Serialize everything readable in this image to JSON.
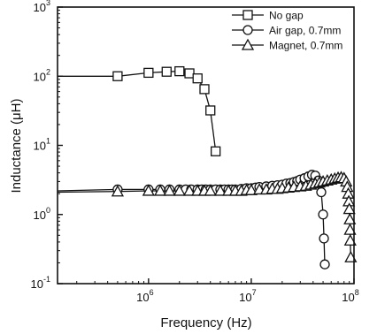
{
  "chart_data": {
    "type": "line",
    "title": "",
    "xlabel": "Frequency (Hz)",
    "ylabel": "Inductance (μH)",
    "x_scale": "log",
    "y_scale": "log",
    "xlim": [
      130000,
      100000000
    ],
    "ylim": [
      0.1,
      1000
    ],
    "x_ticks": [
      {
        "value": 1000000,
        "base": "10",
        "exp": "6"
      },
      {
        "value": 10000000,
        "base": "10",
        "exp": "7"
      },
      {
        "value": 100000000,
        "base": "10",
        "exp": "8"
      }
    ],
    "y_ticks": [
      {
        "value": 0.1,
        "base": "10",
        "exp": "-1"
      },
      {
        "value": 1,
        "base": "10",
        "exp": "0"
      },
      {
        "value": 10,
        "base": "10",
        "exp": "1"
      },
      {
        "value": 100,
        "base": "10",
        "exp": "2"
      },
      {
        "value": 1000,
        "base": "10",
        "exp": "3"
      }
    ],
    "grid": false,
    "legend_position": "top-right",
    "series": [
      {
        "name": "No gap",
        "marker": "square",
        "points": [
          [
            130000,
            100
          ],
          [
            500000,
            100
          ],
          [
            1000000,
            112
          ],
          [
            1500000,
            116
          ],
          [
            2000000,
            118
          ],
          [
            2500000,
            110
          ],
          [
            3000000,
            93
          ],
          [
            3500000,
            65
          ],
          [
            4000000,
            32
          ],
          [
            4500000,
            8.2
          ]
        ]
      },
      {
        "name": "Air gap, 0.7mm",
        "marker": "circle",
        "points": [
          [
            130000,
            2.2
          ],
          [
            500000,
            2.3
          ],
          [
            1000000,
            2.3
          ],
          [
            1300000,
            2.3
          ],
          [
            1600000,
            2.3
          ],
          [
            2000000,
            2.3
          ],
          [
            2300000,
            2.3
          ],
          [
            2600000,
            2.3
          ],
          [
            3000000,
            2.3
          ],
          [
            3300000,
            2.3
          ],
          [
            3600000,
            2.3
          ],
          [
            4000000,
            2.3
          ],
          [
            4500000,
            2.3
          ],
          [
            5000000,
            2.3
          ],
          [
            5500000,
            2.3
          ],
          [
            6000000,
            2.3
          ],
          [
            6500000,
            2.3
          ],
          [
            7000000,
            2.3
          ],
          [
            8000000,
            2.35
          ],
          [
            9000000,
            2.4
          ],
          [
            10000000,
            2.4
          ],
          [
            11000000,
            2.45
          ],
          [
            12000000,
            2.5
          ],
          [
            14000000,
            2.55
          ],
          [
            16000000,
            2.6
          ],
          [
            18000000,
            2.65
          ],
          [
            20000000,
            2.7
          ],
          [
            22000000,
            2.8
          ],
          [
            24000000,
            2.85
          ],
          [
            26000000,
            2.95
          ],
          [
            28000000,
            3.05
          ],
          [
            30000000,
            3.2
          ],
          [
            33000000,
            3.35
          ],
          [
            36000000,
            3.55
          ],
          [
            39000000,
            3.75
          ],
          [
            42000000,
            3.65
          ],
          [
            45000000,
            3.1
          ],
          [
            48000000,
            2.1
          ],
          [
            50000000,
            1.0
          ],
          [
            51000000,
            0.45
          ],
          [
            52000000,
            0.19
          ]
        ]
      },
      {
        "name": "Magnet, 0.7mm",
        "marker": "triangle",
        "points": [
          [
            130000,
            2.1
          ],
          [
            500000,
            2.15
          ],
          [
            1000000,
            2.2
          ],
          [
            1300000,
            2.2
          ],
          [
            1600000,
            2.2
          ],
          [
            2000000,
            2.2
          ],
          [
            2500000,
            2.2
          ],
          [
            3000000,
            2.2
          ],
          [
            3500000,
            2.2
          ],
          [
            4000000,
            2.2
          ],
          [
            5000000,
            2.2
          ],
          [
            6000000,
            2.2
          ],
          [
            7000000,
            2.2
          ],
          [
            8000000,
            2.2
          ],
          [
            9000000,
            2.25
          ],
          [
            10000000,
            2.25
          ],
          [
            12000000,
            2.3
          ],
          [
            14000000,
            2.3
          ],
          [
            16000000,
            2.35
          ],
          [
            18000000,
            2.35
          ],
          [
            20000000,
            2.4
          ],
          [
            23000000,
            2.45
          ],
          [
            26000000,
            2.5
          ],
          [
            30000000,
            2.55
          ],
          [
            34000000,
            2.6
          ],
          [
            38000000,
            2.7
          ],
          [
            42000000,
            2.8
          ],
          [
            46000000,
            2.9
          ],
          [
            50000000,
            3.0
          ],
          [
            55000000,
            3.1
          ],
          [
            60000000,
            3.2
          ],
          [
            65000000,
            3.3
          ],
          [
            70000000,
            3.4
          ],
          [
            75000000,
            3.45
          ],
          [
            80000000,
            3.35
          ],
          [
            84000000,
            3.0
          ],
          [
            86000000,
            2.5
          ],
          [
            88000000,
            2.0
          ],
          [
            89000000,
            1.55
          ],
          [
            90000000,
            1.2
          ],
          [
            91000000,
            0.85
          ],
          [
            91500000,
            0.6
          ],
          [
            92000000,
            0.42
          ],
          [
            93000000,
            0.24
          ]
        ]
      }
    ]
  }
}
